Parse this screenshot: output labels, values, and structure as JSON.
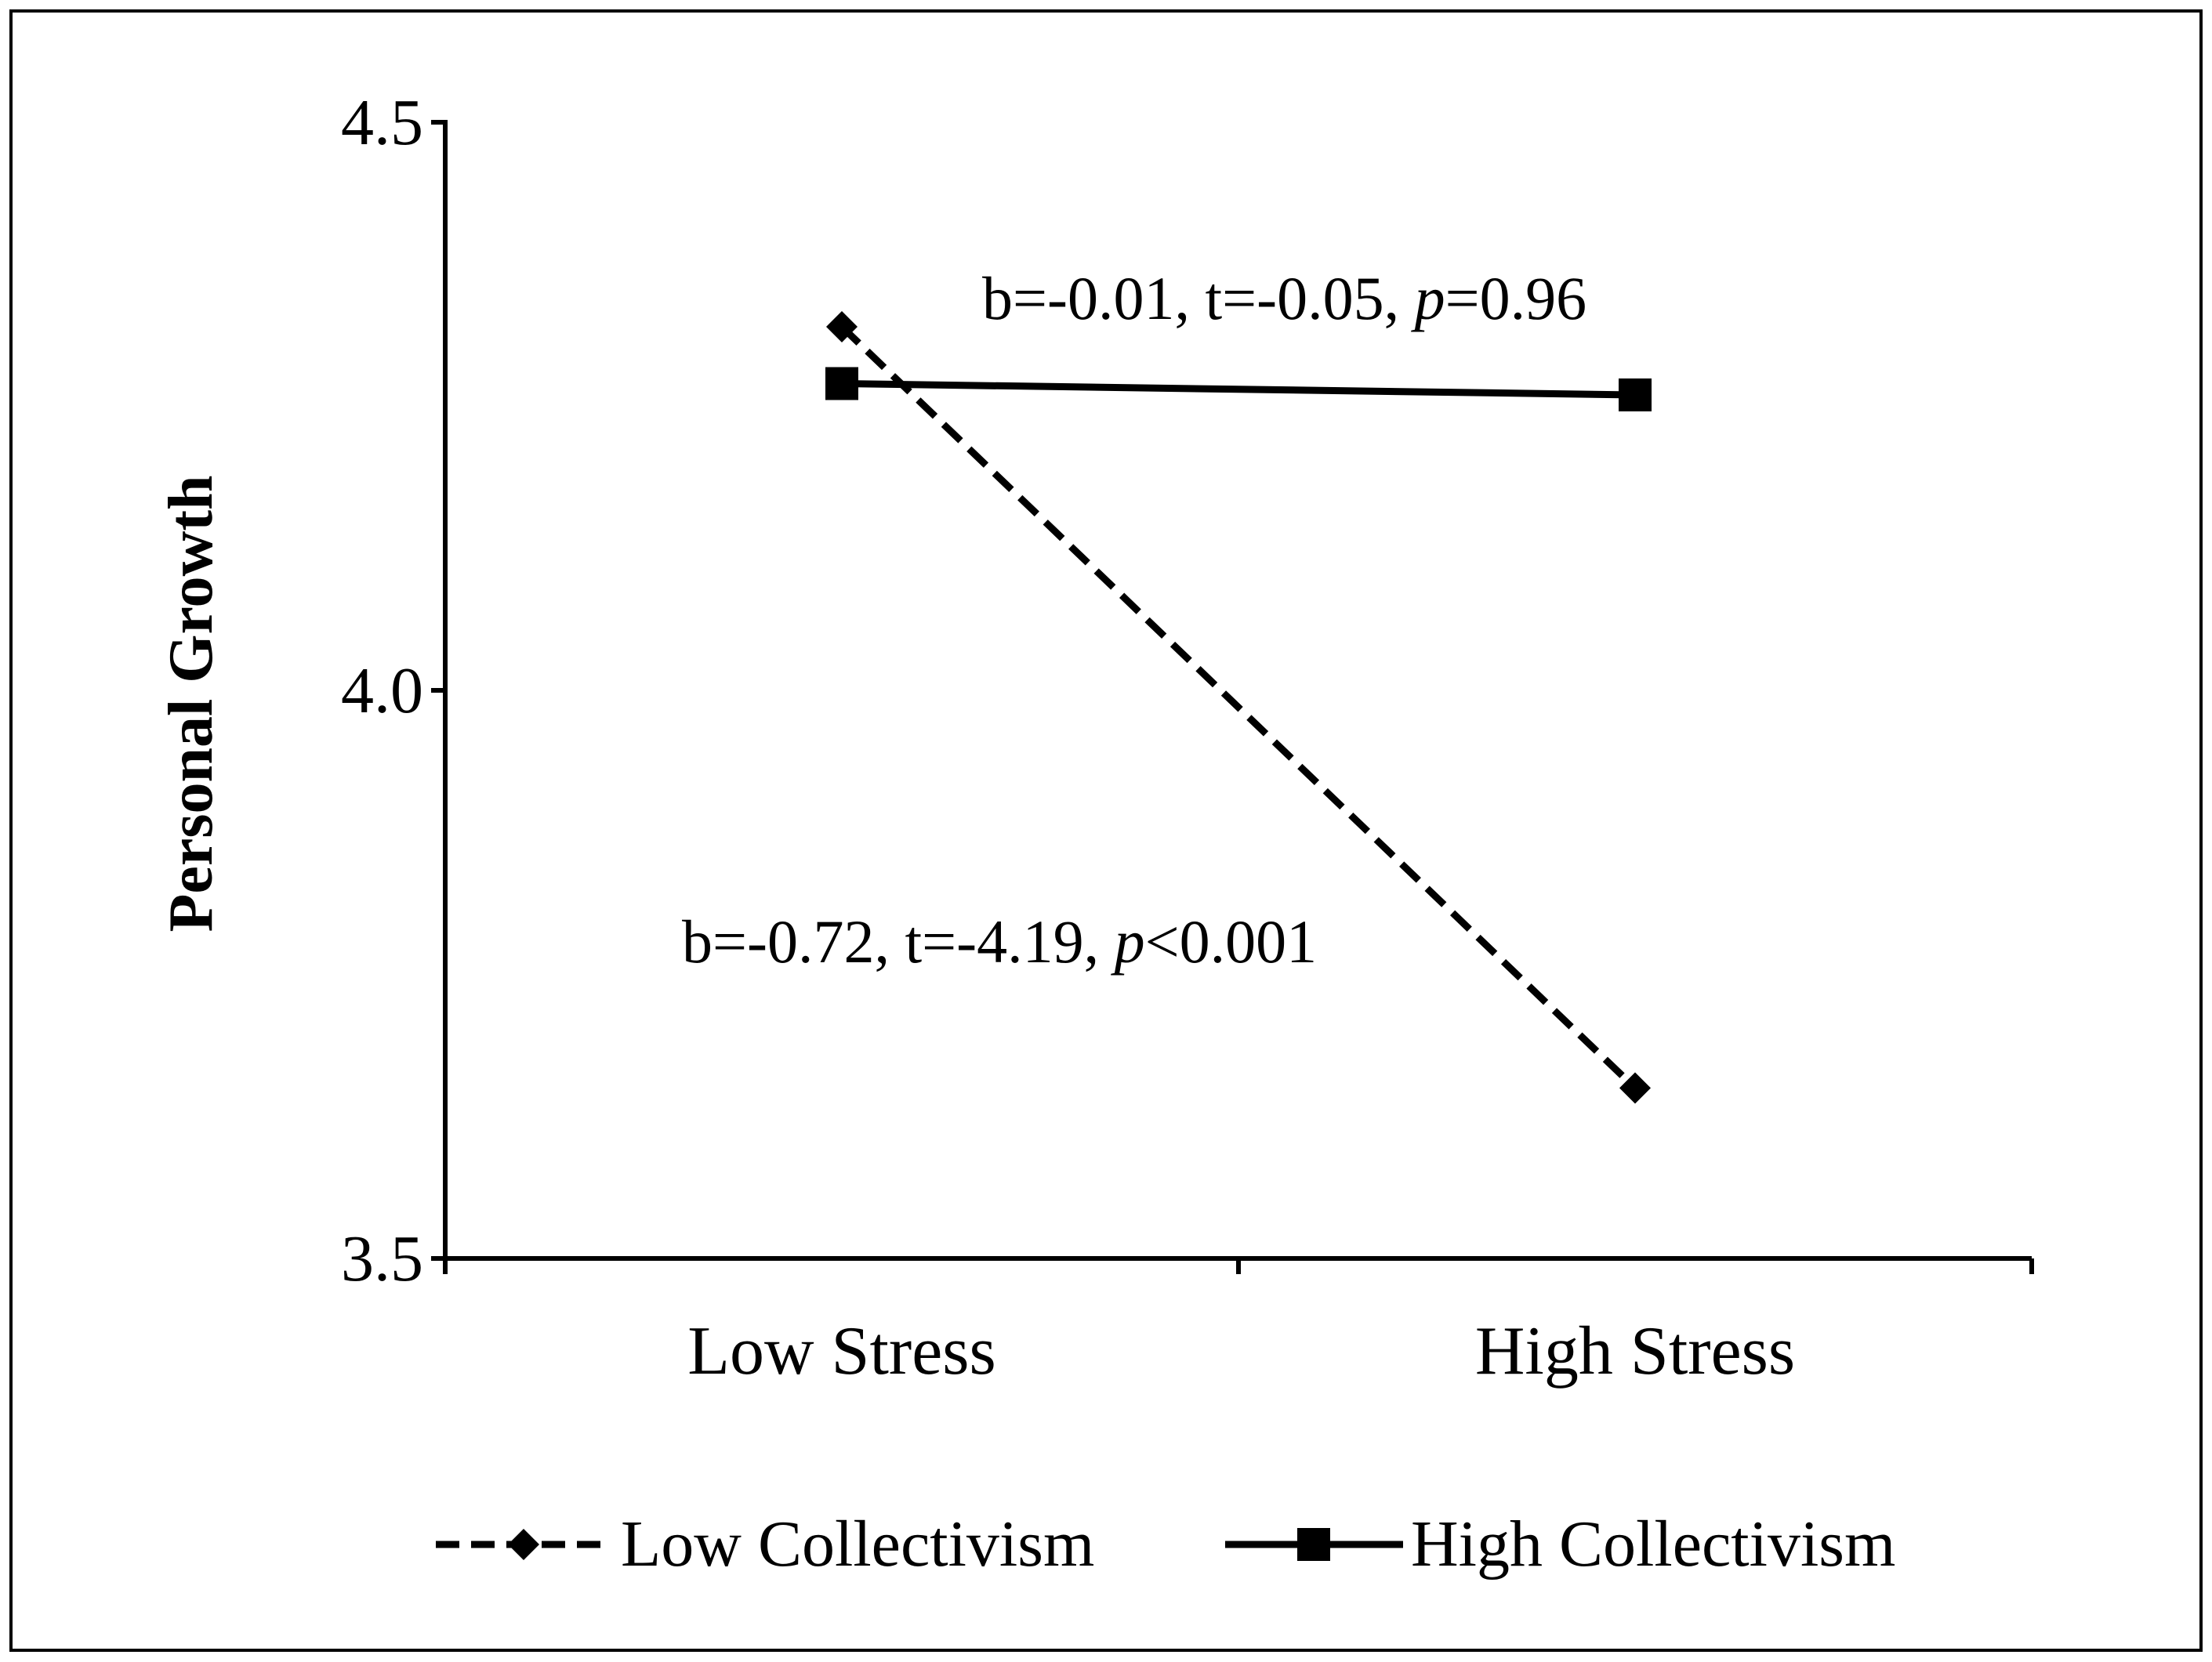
{
  "chart_data": {
    "type": "line",
    "title": "",
    "xlabel": "",
    "ylabel": "Personal Growth",
    "categories": [
      "Low Stress",
      "High Stress"
    ],
    "ylim": [
      3.5,
      4.5
    ],
    "yticks": [
      "3.5",
      "4.0",
      "4.5"
    ],
    "ytick_values": [
      3.5,
      4.0,
      4.5
    ],
    "grid": false,
    "legend_position": "bottom",
    "series": [
      {
        "name": "Low Collectivism",
        "values": [
          4.32,
          3.65
        ],
        "line_style": "dashed",
        "marker": "diamond",
        "annotation": {
          "b": "b=-0.72, t=-4.19, ",
          "p_letter": "p",
          "p_rest": "<0.001"
        }
      },
      {
        "name": "High Collectivism",
        "values": [
          4.27,
          4.26
        ],
        "line_style": "solid",
        "marker": "square",
        "annotation": {
          "b": "b=-0.01, t=-0.05, ",
          "p_letter": "p",
          "p_rest": "=0.96"
        }
      }
    ],
    "colors": {
      "line": "#000000",
      "background": "#ffffff"
    }
  }
}
